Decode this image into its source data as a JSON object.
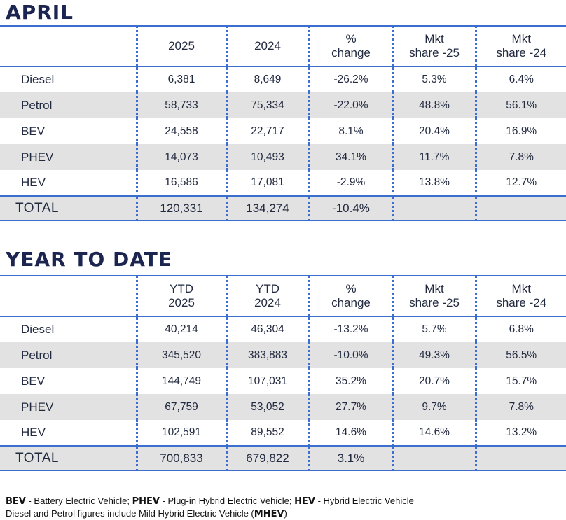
{
  "april": {
    "title": "APRIL",
    "headers": [
      "",
      "2025",
      "2024",
      "% change",
      "Mkt share -25",
      "Mkt share -24"
    ],
    "header_lines": [
      [
        ""
      ],
      [
        "2025"
      ],
      [
        "2024"
      ],
      [
        "%",
        "change"
      ],
      [
        "Mkt",
        "share -25"
      ],
      [
        "Mkt",
        "share -24"
      ]
    ],
    "rows": [
      {
        "label": "Diesel",
        "values": [
          "6,381",
          "8,649",
          "-26.2%",
          "5.3%",
          "6.4%"
        ]
      },
      {
        "label": "Petrol",
        "values": [
          "58,733",
          "75,334",
          "-22.0%",
          "48.8%",
          "56.1%"
        ]
      },
      {
        "label": "BEV",
        "values": [
          "24,558",
          "22,717",
          "8.1%",
          "20.4%",
          "16.9%"
        ]
      },
      {
        "label": "PHEV",
        "values": [
          "14,073",
          "10,493",
          "34.1%",
          "11.7%",
          "7.8%"
        ]
      },
      {
        "label": "HEV",
        "values": [
          "16,586",
          "17,081",
          "-2.9%",
          "13.8%",
          "12.7%"
        ]
      }
    ],
    "total": {
      "label": "TOTAL",
      "values": [
        "120,331",
        "134,274",
        "-10.4%",
        "",
        ""
      ]
    }
  },
  "ytd": {
    "title": "YEAR TO DATE",
    "header_lines": [
      [
        ""
      ],
      [
        "YTD",
        "2025"
      ],
      [
        "YTD",
        "2024"
      ],
      [
        "%",
        "change"
      ],
      [
        "Mkt",
        "share -25"
      ],
      [
        "Mkt",
        "share -24"
      ]
    ],
    "rows": [
      {
        "label": "Diesel",
        "values": [
          "40,214",
          "46,304",
          "-13.2%",
          "5.7%",
          "6.8%"
        ]
      },
      {
        "label": "Petrol",
        "values": [
          "345,520",
          "383,883",
          "-10.0%",
          "49.3%",
          "56.5%"
        ]
      },
      {
        "label": "BEV",
        "values": [
          "144,749",
          "107,031",
          "35.2%",
          "20.7%",
          "15.7%"
        ]
      },
      {
        "label": "PHEV",
        "values": [
          "67,759",
          "53,052",
          "27.7%",
          "9.7%",
          "7.8%"
        ]
      },
      {
        "label": "HEV",
        "values": [
          "102,591",
          "89,552",
          "14.6%",
          "14.6%",
          "13.2%"
        ]
      }
    ],
    "total": {
      "label": "TOTAL",
      "values": [
        "700,833",
        "679,822",
        "3.1%",
        "",
        ""
      ]
    }
  },
  "footnote": {
    "line1": [
      {
        "text": "BEV",
        "bold": true
      },
      {
        "text": " - Battery Electric Vehicle; ",
        "bold": false
      },
      {
        "text": "PHEV",
        "bold": true
      },
      {
        "text": " - Plug-in Hybrid Electric Vehicle; ",
        "bold": false
      },
      {
        "text": "HEV",
        "bold": true
      },
      {
        "text": " - Hybrid Electric Vehicle",
        "bold": false
      }
    ],
    "line2": [
      {
        "text": "Diesel and Petrol figures include Mild Hybrid Electric Vehicle (",
        "bold": false
      },
      {
        "text": "MHEV",
        "bold": true
      },
      {
        "text": ")",
        "bold": false
      }
    ]
  },
  "colors": {
    "title": "#1b2550",
    "rule": "#3a6fcf",
    "shade": "#e2e2e2"
  }
}
